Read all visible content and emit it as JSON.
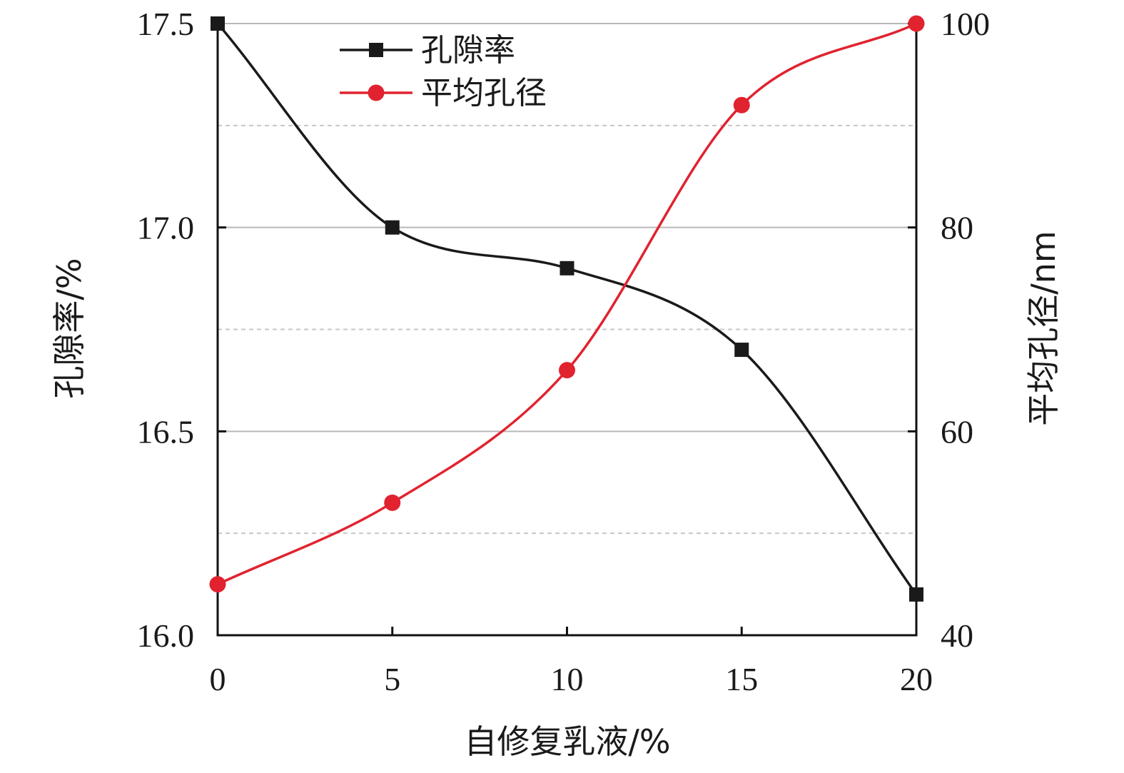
{
  "chart_data": {
    "type": "line",
    "xlabel": "自修复乳液/%",
    "ylabel_left": "孔隙率/%",
    "ylabel_right": "平均孔径/nm",
    "x": [
      0,
      5,
      10,
      15,
      20
    ],
    "x_ticks": [
      "0",
      "5",
      "10",
      "15",
      "20"
    ],
    "xlim": [
      0,
      20
    ],
    "ylim_left": [
      16.0,
      17.5
    ],
    "ylim_right": [
      40,
      100
    ],
    "y_ticks_left": [
      "16.0",
      "16.5",
      "17.0",
      "17.5"
    ],
    "y_ticks_right": [
      "40",
      "60",
      "80",
      "100"
    ],
    "legend_position": "top-left",
    "grid": "horizontal",
    "series": [
      {
        "name": "孔隙率",
        "axis": "left",
        "color": "#1a1a1a",
        "marker": "square",
        "values": [
          17.5,
          17.0,
          16.9,
          16.7,
          16.1
        ]
      },
      {
        "name": "平均孔径",
        "axis": "right",
        "color": "#e0232f",
        "marker": "circle",
        "values": [
          45,
          53,
          66,
          92,
          100
        ]
      }
    ]
  }
}
